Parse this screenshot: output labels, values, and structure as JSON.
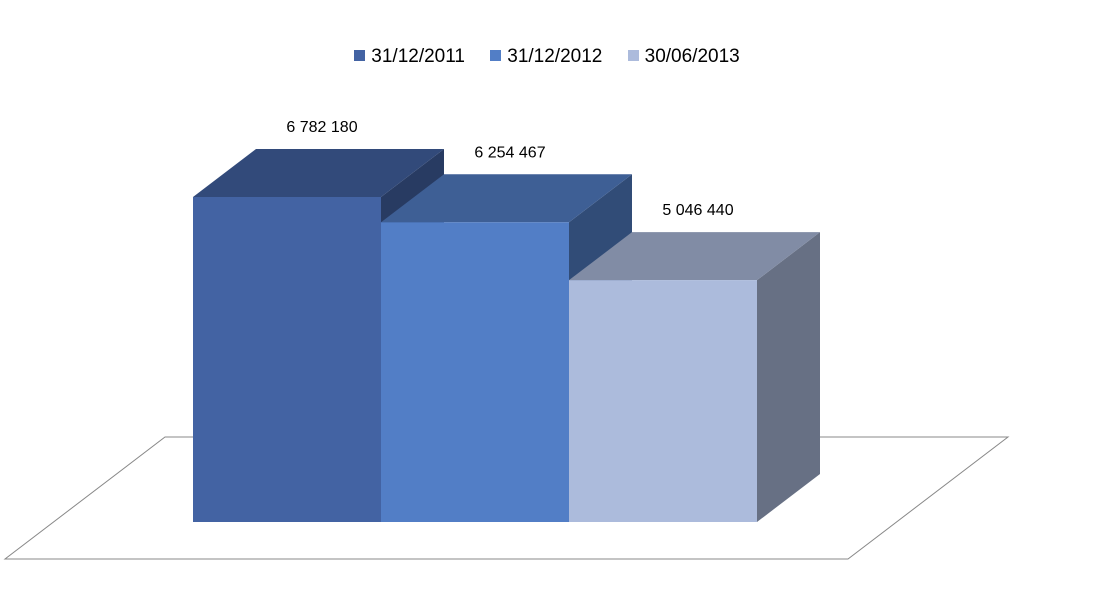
{
  "chart_data": {
    "type": "bar",
    "title": "",
    "xlabel": "",
    "ylabel": "",
    "ylim": [
      0,
      7000000
    ],
    "grid": false,
    "legend_placement": "top",
    "series": [
      {
        "name": "31/12/2011",
        "value": 6782180,
        "label": "6 782 180",
        "color": "#4363A3"
      },
      {
        "name": "31/12/2012",
        "value": 6254467,
        "label": "6 254 467",
        "color": "#527EC6"
      },
      {
        "name": "30/06/2013",
        "value": 5046440,
        "label": "5 046 440",
        "color": "#ACBBDC"
      }
    ]
  }
}
